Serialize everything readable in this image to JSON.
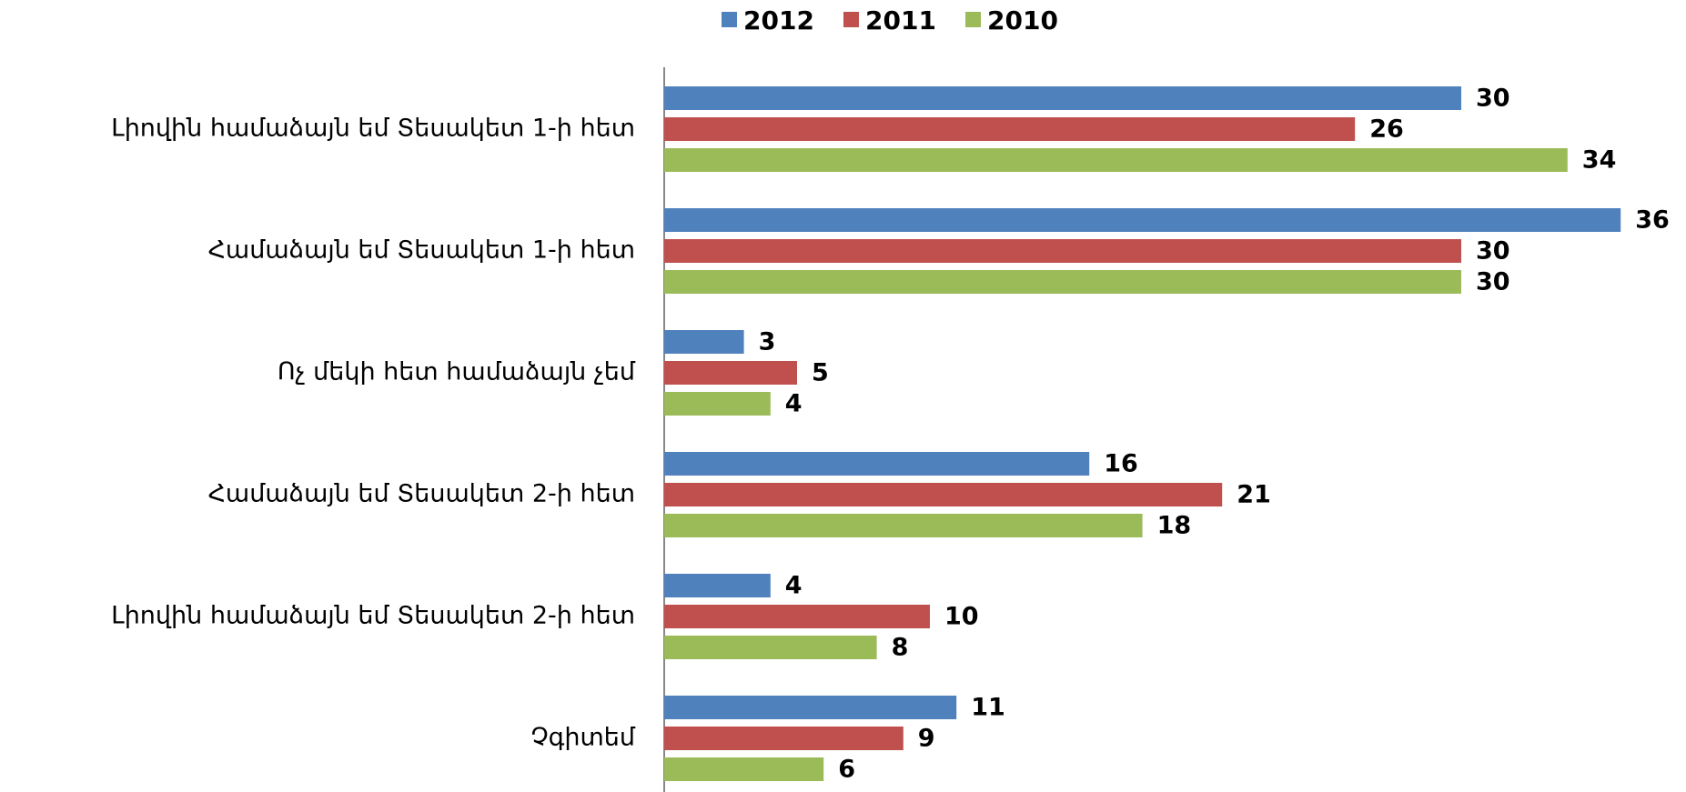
{
  "chart_data": {
    "type": "bar",
    "orientation": "horizontal",
    "categories": [
      "Լիովին համաձայն եմ Տեսակետ 1-ի հետ",
      "Համաձայն եմ Տեսակետ 1-ի հետ",
      "Ոչ մեկի հետ համաձայն չեմ",
      "Համաձայն եմ Տեսակետ 2-ի հետ",
      "Լիովին համաձայն եմ Տեսակետ 2-ի հետ",
      "Չգիտեմ"
    ],
    "series": [
      {
        "name": "2012",
        "color": "#4f81bd",
        "values": [
          30,
          36,
          3,
          16,
          4,
          11
        ]
      },
      {
        "name": "2011",
        "color": "#c0504d",
        "values": [
          26,
          30,
          5,
          21,
          10,
          9
        ]
      },
      {
        "name": "2010",
        "color": "#9bbb59",
        "values": [
          34,
          30,
          4,
          18,
          8,
          6
        ]
      }
    ],
    "legend": "top",
    "data_labels": true
  }
}
